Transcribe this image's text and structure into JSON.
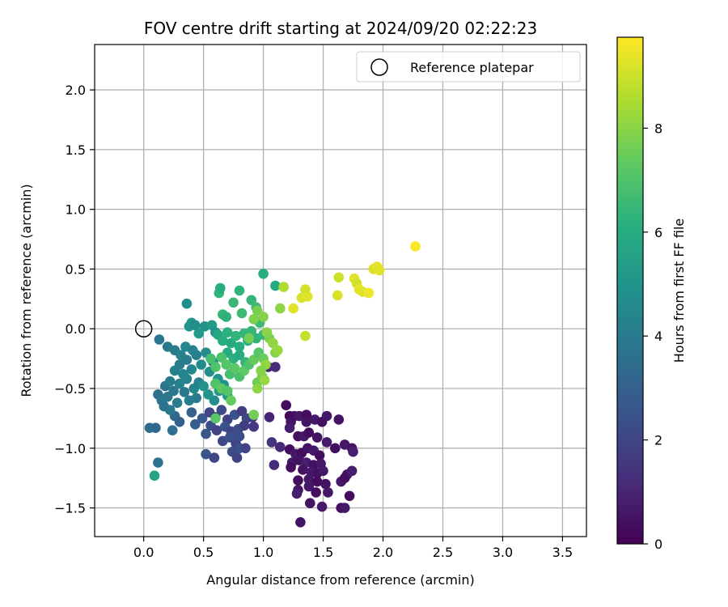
{
  "chart_data": {
    "type": "scatter",
    "title": "FOV centre drift starting at 2024/09/20 02:22:23",
    "xlabel": "Angular distance from reference (arcmin)",
    "ylabel": "Rotation from reference (arcmin)",
    "colorbar_label": "Hours from first FF file",
    "xlim": [
      -0.41,
      3.7
    ],
    "ylim": [
      -1.74,
      2.38
    ],
    "color_range": [
      0,
      9.75
    ],
    "colormap": "viridis",
    "grid": true,
    "legend_position": "top-right",
    "x_ticks": [
      "0.0",
      "0.5",
      "1.0",
      "1.5",
      "2.0",
      "2.5",
      "3.0",
      "3.5"
    ],
    "y_ticks": [
      "2.0",
      "1.5",
      "1.0",
      "0.5",
      "0.0",
      "−0.5",
      "−1.0",
      "−1.5"
    ],
    "colorbar_ticks": [
      "0",
      "2",
      "4",
      "6",
      "8"
    ],
    "reference": {
      "label": "Reference platepar",
      "x": 0.0,
      "y": 0.0
    },
    "points": [
      {
        "x": 1.19,
        "y": -0.64,
        "h": 0.3
      },
      {
        "x": 1.22,
        "y": -0.73,
        "h": 0.2
      },
      {
        "x": 1.23,
        "y": -0.78,
        "h": 0.5
      },
      {
        "x": 1.26,
        "y": -0.73,
        "h": 0.4
      },
      {
        "x": 1.3,
        "y": -0.73,
        "h": 0.6
      },
      {
        "x": 1.36,
        "y": -0.72,
        "h": 0.3
      },
      {
        "x": 1.36,
        "y": -0.78,
        "h": 0.5
      },
      {
        "x": 1.43,
        "y": -0.76,
        "h": 0.7
      },
      {
        "x": 1.49,
        "y": -0.78,
        "h": 0.4
      },
      {
        "x": 1.53,
        "y": -0.73,
        "h": 0.6
      },
      {
        "x": 1.63,
        "y": -0.76,
        "h": 0.5
      },
      {
        "x": 1.22,
        "y": -0.83,
        "h": 0.8
      },
      {
        "x": 1.29,
        "y": -0.9,
        "h": 0.4
      },
      {
        "x": 1.34,
        "y": -0.9,
        "h": 0.6
      },
      {
        "x": 1.38,
        "y": -0.87,
        "h": 0.3
      },
      {
        "x": 1.45,
        "y": -0.91,
        "h": 0.5
      },
      {
        "x": 1.53,
        "y": -0.95,
        "h": 0.7
      },
      {
        "x": 1.6,
        "y": -1.0,
        "h": 0.4
      },
      {
        "x": 1.68,
        "y": -0.97,
        "h": 0.6
      },
      {
        "x": 1.74,
        "y": -1.0,
        "h": 0.5
      },
      {
        "x": 1.75,
        "y": -1.03,
        "h": 0.8
      },
      {
        "x": 1.22,
        "y": -1.01,
        "h": 0.4
      },
      {
        "x": 1.27,
        "y": -1.05,
        "h": 0.6
      },
      {
        "x": 1.32,
        "y": -1.04,
        "h": 0.3
      },
      {
        "x": 1.37,
        "y": -1.0,
        "h": 0.5
      },
      {
        "x": 1.42,
        "y": -1.02,
        "h": 0.7
      },
      {
        "x": 1.47,
        "y": -1.06,
        "h": 0.4
      },
      {
        "x": 1.24,
        "y": -1.12,
        "h": 0.6
      },
      {
        "x": 1.3,
        "y": -1.1,
        "h": 0.5
      },
      {
        "x": 1.36,
        "y": -1.12,
        "h": 0.8
      },
      {
        "x": 1.42,
        "y": -1.14,
        "h": 0.4
      },
      {
        "x": 1.48,
        "y": -1.13,
        "h": 0.6
      },
      {
        "x": 1.23,
        "y": -1.16,
        "h": 0.3
      },
      {
        "x": 1.33,
        "y": -1.18,
        "h": 0.5
      },
      {
        "x": 1.4,
        "y": -1.2,
        "h": 0.7
      },
      {
        "x": 1.45,
        "y": -1.21,
        "h": 0.4
      },
      {
        "x": 1.5,
        "y": -1.19,
        "h": 0.6
      },
      {
        "x": 1.7,
        "y": -1.22,
        "h": 0.5
      },
      {
        "x": 1.74,
        "y": -1.19,
        "h": 0.8
      },
      {
        "x": 1.29,
        "y": -1.27,
        "h": 0.4
      },
      {
        "x": 1.38,
        "y": -1.26,
        "h": 0.6
      },
      {
        "x": 1.45,
        "y": -1.28,
        "h": 0.3
      },
      {
        "x": 1.52,
        "y": -1.3,
        "h": 0.5
      },
      {
        "x": 1.65,
        "y": -1.28,
        "h": 0.7
      },
      {
        "x": 1.68,
        "y": -1.25,
        "h": 0.4
      },
      {
        "x": 1.38,
        "y": -1.32,
        "h": 0.6
      },
      {
        "x": 1.29,
        "y": -1.35,
        "h": 0.5
      },
      {
        "x": 1.28,
        "y": -1.38,
        "h": 0.8
      },
      {
        "x": 1.44,
        "y": -1.37,
        "h": 0.4
      },
      {
        "x": 1.54,
        "y": -1.37,
        "h": 0.6
      },
      {
        "x": 1.72,
        "y": -1.4,
        "h": 0.3
      },
      {
        "x": 1.39,
        "y": -1.46,
        "h": 0.5
      },
      {
        "x": 1.49,
        "y": -1.49,
        "h": 0.7
      },
      {
        "x": 1.65,
        "y": -1.5,
        "h": 0.4
      },
      {
        "x": 1.68,
        "y": -1.5,
        "h": 0.6
      },
      {
        "x": 1.31,
        "y": -1.62,
        "h": 0.5
      },
      {
        "x": 1.04,
        "y": -0.32,
        "h": 1.0
      },
      {
        "x": 1.1,
        "y": -0.32,
        "h": 1.2
      },
      {
        "x": 1.05,
        "y": -0.74,
        "h": 1.0
      },
      {
        "x": 1.07,
        "y": -0.95,
        "h": 1.4
      },
      {
        "x": 1.09,
        "y": -1.14,
        "h": 1.2
      },
      {
        "x": 1.14,
        "y": -0.99,
        "h": 1.1
      },
      {
        "x": 0.55,
        "y": -0.7,
        "h": 2.0
      },
      {
        "x": 0.6,
        "y": -0.74,
        "h": 1.8
      },
      {
        "x": 0.65,
        "y": -0.68,
        "h": 2.2
      },
      {
        "x": 0.7,
        "y": -0.76,
        "h": 1.9
      },
      {
        "x": 0.76,
        "y": -0.72,
        "h": 2.4
      },
      {
        "x": 0.82,
        "y": -0.69,
        "h": 1.7
      },
      {
        "x": 0.86,
        "y": -0.75,
        "h": 2.1
      },
      {
        "x": 0.56,
        "y": -0.81,
        "h": 2.3
      },
      {
        "x": 0.61,
        "y": -0.85,
        "h": 1.9
      },
      {
        "x": 0.68,
        "y": -0.82,
        "h": 2.5
      },
      {
        "x": 0.73,
        "y": -0.86,
        "h": 2.0
      },
      {
        "x": 0.79,
        "y": -0.84,
        "h": 2.2
      },
      {
        "x": 0.84,
        "y": -0.81,
        "h": 1.8
      },
      {
        "x": 0.52,
        "y": -0.88,
        "h": 2.6
      },
      {
        "x": 0.66,
        "y": -0.94,
        "h": 2.1
      },
      {
        "x": 0.72,
        "y": -0.91,
        "h": 2.4
      },
      {
        "x": 0.77,
        "y": -0.96,
        "h": 1.9
      },
      {
        "x": 0.8,
        "y": -0.9,
        "h": 2.3
      },
      {
        "x": 0.52,
        "y": -1.05,
        "h": 2.5
      },
      {
        "x": 0.59,
        "y": -1.08,
        "h": 2.0
      },
      {
        "x": 0.74,
        "y": -1.03,
        "h": 2.2
      },
      {
        "x": 0.78,
        "y": -1.08,
        "h": 1.9
      },
      {
        "x": 0.8,
        "y": -1.0,
        "h": 2.4
      },
      {
        "x": 0.85,
        "y": -1.0,
        "h": 2.0
      },
      {
        "x": 0.91,
        "y": -0.74,
        "h": 1.6
      },
      {
        "x": 0.92,
        "y": -0.82,
        "h": 1.5
      },
      {
        "x": 0.49,
        "y": -0.75,
        "h": 2.7
      },
      {
        "x": 0.43,
        "y": -0.8,
        "h": 2.9
      },
      {
        "x": 0.4,
        "y": -0.7,
        "h": 3.1
      },
      {
        "x": 0.3,
        "y": -0.78,
        "h": 3.0
      },
      {
        "x": 0.26,
        "y": -0.73,
        "h": 3.2
      },
      {
        "x": 0.05,
        "y": -0.83,
        "h": 3.4
      },
      {
        "x": 0.1,
        "y": -0.83,
        "h": 3.3
      },
      {
        "x": 0.12,
        "y": -1.12,
        "h": 3.6
      },
      {
        "x": 0.24,
        "y": -0.85,
        "h": 3.5
      },
      {
        "x": 0.12,
        "y": -0.55,
        "h": 3.6
      },
      {
        "x": 0.15,
        "y": -0.6,
        "h": 3.8
      },
      {
        "x": 0.18,
        "y": -0.48,
        "h": 3.7
      },
      {
        "x": 0.2,
        "y": -0.57,
        "h": 3.9
      },
      {
        "x": 0.22,
        "y": -0.44,
        "h": 4.1
      },
      {
        "x": 0.25,
        "y": -0.52,
        "h": 3.8
      },
      {
        "x": 0.28,
        "y": -0.62,
        "h": 4.0
      },
      {
        "x": 0.3,
        "y": -0.46,
        "h": 4.2
      },
      {
        "x": 0.34,
        "y": -0.53,
        "h": 3.9
      },
      {
        "x": 0.36,
        "y": -0.42,
        "h": 4.3
      },
      {
        "x": 0.38,
        "y": -0.6,
        "h": 4.1
      },
      {
        "x": 0.42,
        "y": -0.5,
        "h": 4.4
      },
      {
        "x": 0.44,
        "y": -0.58,
        "h": 4.0
      },
      {
        "x": 0.46,
        "y": -0.45,
        "h": 4.3
      },
      {
        "x": 0.17,
        "y": -0.65,
        "h": 3.7
      },
      {
        "x": 0.22,
        "y": -0.68,
        "h": 3.9
      },
      {
        "x": 0.26,
        "y": -0.35,
        "h": 4.2
      },
      {
        "x": 0.3,
        "y": -0.3,
        "h": 4.0
      },
      {
        "x": 0.33,
        "y": -0.38,
        "h": 4.4
      },
      {
        "x": 0.36,
        "y": -0.26,
        "h": 4.1
      },
      {
        "x": 0.4,
        "y": -0.34,
        "h": 4.5
      },
      {
        "x": 0.44,
        "y": -0.22,
        "h": 4.2
      },
      {
        "x": 0.48,
        "y": -0.3,
        "h": 4.6
      },
      {
        "x": 0.2,
        "y": -0.15,
        "h": 3.9
      },
      {
        "x": 0.26,
        "y": -0.18,
        "h": 4.1
      },
      {
        "x": 0.31,
        "y": -0.22,
        "h": 4.3
      },
      {
        "x": 0.35,
        "y": -0.15,
        "h": 4.5
      },
      {
        "x": 0.41,
        "y": -0.18,
        "h": 4.2
      },
      {
        "x": 0.13,
        "y": -0.09,
        "h": 3.8
      },
      {
        "x": 0.52,
        "y": -0.2,
        "h": 4.7
      },
      {
        "x": 0.55,
        "y": -0.36,
        "h": 4.8
      },
      {
        "x": 0.58,
        "y": -0.28,
        "h": 4.6
      },
      {
        "x": 0.62,
        "y": -0.42,
        "h": 5.0
      },
      {
        "x": 0.5,
        "y": -0.48,
        "h": 4.9
      },
      {
        "x": 0.54,
        "y": -0.55,
        "h": 5.1
      },
      {
        "x": 0.59,
        "y": -0.6,
        "h": 4.8
      },
      {
        "x": 0.63,
        "y": -0.52,
        "h": 5.2
      },
      {
        "x": 0.67,
        "y": -0.47,
        "h": 5.0
      },
      {
        "x": 0.7,
        "y": -0.56,
        "h": 5.3
      },
      {
        "x": 0.09,
        "y": -1.23,
        "h": 5.6
      },
      {
        "x": 0.36,
        "y": 0.21,
        "h": 4.8
      },
      {
        "x": 0.38,
        "y": 0.02,
        "h": 4.9
      },
      {
        "x": 0.4,
        "y": 0.05,
        "h": 5.1
      },
      {
        "x": 0.43,
        "y": 0.03,
        "h": 4.7
      },
      {
        "x": 0.46,
        "y": -0.04,
        "h": 5.2
      },
      {
        "x": 0.51,
        "y": 0.02,
        "h": 5.0
      },
      {
        "x": 0.57,
        "y": 0.03,
        "h": 5.3
      },
      {
        "x": 0.6,
        "y": -0.03,
        "h": 4.9
      },
      {
        "x": 0.63,
        "y": 0.3,
        "h": 6.3
      },
      {
        "x": 0.64,
        "y": 0.34,
        "h": 6.1
      },
      {
        "x": 0.66,
        "y": 0.12,
        "h": 6.4
      },
      {
        "x": 0.69,
        "y": 0.1,
        "h": 6.2
      },
      {
        "x": 0.75,
        "y": 0.22,
        "h": 6.5
      },
      {
        "x": 0.8,
        "y": 0.32,
        "h": 6.3
      },
      {
        "x": 0.82,
        "y": 0.13,
        "h": 6.6
      },
      {
        "x": 0.9,
        "y": 0.24,
        "h": 6.4
      },
      {
        "x": 0.94,
        "y": 0.18,
        "h": 6.7
      },
      {
        "x": 1.0,
        "y": 0.46,
        "h": 6.0
      },
      {
        "x": 1.1,
        "y": 0.36,
        "h": 5.9
      },
      {
        "x": 0.62,
        "y": -0.05,
        "h": 5.8
      },
      {
        "x": 0.66,
        "y": -0.1,
        "h": 6.0
      },
      {
        "x": 0.7,
        "y": -0.03,
        "h": 6.2
      },
      {
        "x": 0.73,
        "y": -0.12,
        "h": 5.9
      },
      {
        "x": 0.77,
        "y": -0.06,
        "h": 6.3
      },
      {
        "x": 0.8,
        "y": -0.15,
        "h": 6.1
      },
      {
        "x": 0.84,
        "y": -0.04,
        "h": 6.4
      },
      {
        "x": 0.87,
        "y": -0.1,
        "h": 6.2
      },
      {
        "x": 0.9,
        "y": -0.02,
        "h": 6.5
      },
      {
        "x": 0.94,
        "y": -0.08,
        "h": 6.3
      },
      {
        "x": 0.97,
        "y": 0.05,
        "h": 6.6
      },
      {
        "x": 1.0,
        "y": -0.05,
        "h": 6.4
      },
      {
        "x": 0.7,
        "y": -0.2,
        "h": 6.0
      },
      {
        "x": 0.75,
        "y": -0.25,
        "h": 6.2
      },
      {
        "x": 0.8,
        "y": -0.22,
        "h": 5.9
      },
      {
        "x": 0.85,
        "y": -0.28,
        "h": 6.3
      },
      {
        "x": 0.56,
        "y": -0.25,
        "h": 6.8
      },
      {
        "x": 0.6,
        "y": -0.32,
        "h": 7.0
      },
      {
        "x": 0.65,
        "y": -0.24,
        "h": 6.9
      },
      {
        "x": 0.69,
        "y": -0.3,
        "h": 7.1
      },
      {
        "x": 0.72,
        "y": -0.38,
        "h": 6.8
      },
      {
        "x": 0.76,
        "y": -0.33,
        "h": 7.2
      },
      {
        "x": 0.8,
        "y": -0.4,
        "h": 6.9
      },
      {
        "x": 0.84,
        "y": -0.35,
        "h": 7.3
      },
      {
        "x": 0.88,
        "y": -0.3,
        "h": 7.0
      },
      {
        "x": 0.92,
        "y": -0.26,
        "h": 7.4
      },
      {
        "x": 0.96,
        "y": -0.2,
        "h": 7.1
      },
      {
        "x": 1.0,
        "y": -0.25,
        "h": 7.5
      },
      {
        "x": 0.6,
        "y": -0.46,
        "h": 7.0
      },
      {
        "x": 0.65,
        "y": -0.5,
        "h": 7.3
      },
      {
        "x": 0.7,
        "y": -0.52,
        "h": 7.1
      },
      {
        "x": 0.73,
        "y": -0.6,
        "h": 7.4
      },
      {
        "x": 0.6,
        "y": -0.75,
        "h": 7.2
      },
      {
        "x": 0.92,
        "y": -0.72,
        "h": 7.6
      },
      {
        "x": 0.95,
        "y": -0.45,
        "h": 7.5
      },
      {
        "x": 0.99,
        "y": -0.4,
        "h": 7.7
      },
      {
        "x": 0.88,
        "y": -0.08,
        "h": 7.6
      },
      {
        "x": 0.92,
        "y": 0.08,
        "h": 7.8
      },
      {
        "x": 0.95,
        "y": 0.15,
        "h": 7.7
      },
      {
        "x": 1.0,
        "y": 0.1,
        "h": 7.9
      },
      {
        "x": 1.03,
        "y": -0.03,
        "h": 8.0
      },
      {
        "x": 1.05,
        "y": -0.08,
        "h": 7.8
      },
      {
        "x": 1.08,
        "y": -0.12,
        "h": 8.1
      },
      {
        "x": 1.1,
        "y": -0.2,
        "h": 7.9
      },
      {
        "x": 1.12,
        "y": -0.18,
        "h": 8.2
      },
      {
        "x": 1.14,
        "y": 0.17,
        "h": 8.0
      },
      {
        "x": 1.02,
        "y": -0.3,
        "h": 8.1
      },
      {
        "x": 0.98,
        "y": -0.35,
        "h": 7.9
      },
      {
        "x": 1.01,
        "y": -0.43,
        "h": 8.2
      },
      {
        "x": 0.95,
        "y": -0.5,
        "h": 8.0
      },
      {
        "x": 1.17,
        "y": 0.35,
        "h": 8.5
      },
      {
        "x": 1.25,
        "y": 0.17,
        "h": 9.3
      },
      {
        "x": 1.32,
        "y": 0.26,
        "h": 9.2
      },
      {
        "x": 1.35,
        "y": 0.33,
        "h": 9.1
      },
      {
        "x": 1.37,
        "y": 0.27,
        "h": 9.3
      },
      {
        "x": 1.35,
        "y": -0.06,
        "h": 8.9
      },
      {
        "x": 1.62,
        "y": 0.28,
        "h": 9.2
      },
      {
        "x": 1.63,
        "y": 0.43,
        "h": 9.0
      },
      {
        "x": 1.76,
        "y": 0.42,
        "h": 9.3
      },
      {
        "x": 1.78,
        "y": 0.38,
        "h": 9.1
      },
      {
        "x": 1.8,
        "y": 0.33,
        "h": 9.4
      },
      {
        "x": 1.83,
        "y": 0.31,
        "h": 9.3
      },
      {
        "x": 1.88,
        "y": 0.3,
        "h": 9.5
      },
      {
        "x": 1.92,
        "y": 0.5,
        "h": 9.2
      },
      {
        "x": 1.95,
        "y": 0.52,
        "h": 9.4
      },
      {
        "x": 1.97,
        "y": 0.49,
        "h": 9.3
      },
      {
        "x": 2.27,
        "y": 0.69,
        "h": 9.7
      }
    ]
  }
}
